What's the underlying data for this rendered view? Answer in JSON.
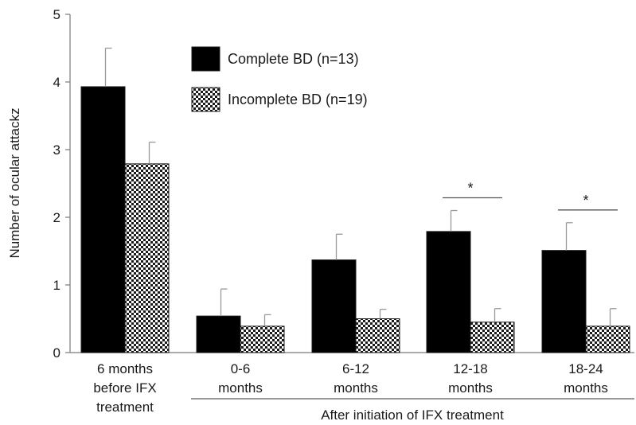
{
  "chart_data": {
    "type": "bar",
    "title": "",
    "ylabel": "Number of ocular attackz",
    "xlabel": "",
    "ylim": [
      0,
      5
    ],
    "yticks": [
      "0",
      "1",
      "2",
      "3",
      "4",
      "5"
    ],
    "grid": false,
    "legend_position": "top-center",
    "categories": [
      [
        "6 months",
        "before IFX",
        "treatment"
      ],
      [
        "0-6",
        "months"
      ],
      [
        "6-12",
        "months"
      ],
      [
        "12-18",
        "months"
      ],
      [
        "18-24",
        "months"
      ]
    ],
    "group_label": "After initiation of IFX treatment",
    "series": [
      {
        "name": "Complete BD (n=13)",
        "color": "#000000",
        "pattern": "solid",
        "values": [
          3.93,
          0.54,
          1.37,
          1.79,
          1.51
        ],
        "errors": [
          0.57,
          0.4,
          0.38,
          0.31,
          0.41
        ]
      },
      {
        "name": "Incomplete BD (n=19)",
        "color": "#000000",
        "pattern": "checkered",
        "values": [
          2.79,
          0.39,
          0.5,
          0.45,
          0.39
        ],
        "errors": [
          0.32,
          0.17,
          0.14,
          0.2,
          0.26
        ]
      }
    ],
    "annotations": [
      {
        "category_index": 3,
        "text": "*"
      },
      {
        "category_index": 4,
        "text": "*"
      }
    ]
  }
}
